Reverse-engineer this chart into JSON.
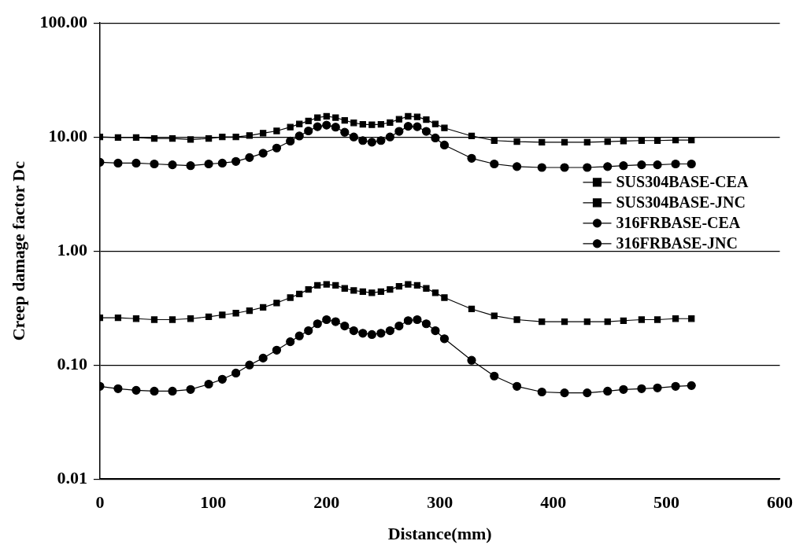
{
  "chart_data": {
    "type": "line",
    "xlabel": "Distance(mm)",
    "ylabel": "Creep damage factor Dc",
    "log": "y",
    "grid": "y",
    "legend": "right",
    "line_style": "solid",
    "x": [
      0,
      16,
      32,
      48,
      64,
      80,
      96,
      108,
      120,
      132,
      144,
      156,
      168,
      176,
      184,
      192,
      200,
      208,
      216,
      224,
      232,
      240,
      248,
      256,
      264,
      272,
      280,
      288,
      296,
      304,
      328,
      348,
      368,
      390,
      410,
      430,
      448,
      462,
      478,
      492,
      508,
      522
    ],
    "xlim": [
      0,
      600
    ],
    "xticks": [
      0,
      100,
      200,
      300,
      400,
      500,
      600
    ],
    "ylim": [
      0.01,
      100
    ],
    "yticks": [
      {
        "value": 0.01,
        "label": "0.01"
      },
      {
        "value": 0.1,
        "label": "0.10"
      },
      {
        "value": 1,
        "label": "1.00"
      },
      {
        "value": 10,
        "label": "10.00"
      },
      {
        "value": 100,
        "label": "100.00"
      }
    ],
    "series": [
      {
        "name": "SUS304BASE-CEA",
        "color": "#000000",
        "marker": "square",
        "values": [
          10,
          9.9,
          9.9,
          9.7,
          9.7,
          9.5,
          9.7,
          10,
          10,
          10.3,
          10.8,
          11.3,
          12.2,
          13,
          13.8,
          14.8,
          15.2,
          14.8,
          14,
          13.3,
          12.9,
          12.8,
          12.9,
          13.4,
          14.3,
          15.2,
          15,
          14.2,
          13,
          12,
          10.2,
          9.3,
          9.1,
          9,
          9,
          9,
          9.1,
          9.2,
          9.3,
          9.3,
          9.4,
          9.4
        ]
      },
      {
        "name": "SUS304BASE-JNC",
        "color": "#000000",
        "marker": "square",
        "values": [
          0.26,
          0.26,
          0.255,
          0.25,
          0.25,
          0.255,
          0.265,
          0.275,
          0.285,
          0.3,
          0.32,
          0.35,
          0.39,
          0.42,
          0.46,
          0.5,
          0.51,
          0.5,
          0.47,
          0.45,
          0.44,
          0.43,
          0.44,
          0.46,
          0.49,
          0.51,
          0.5,
          0.47,
          0.43,
          0.39,
          0.31,
          0.27,
          0.25,
          0.24,
          0.24,
          0.24,
          0.24,
          0.245,
          0.25,
          0.25,
          0.255,
          0.255
        ]
      },
      {
        "name": "316FRBASE-CEA",
        "color": "#000000",
        "marker": "circle",
        "values": [
          6,
          5.9,
          5.9,
          5.8,
          5.7,
          5.6,
          5.8,
          5.9,
          6.1,
          6.6,
          7.2,
          8,
          9.2,
          10.2,
          11.3,
          12.3,
          12.7,
          12.2,
          11,
          10,
          9.3,
          9,
          9.3,
          10,
          11.2,
          12.4,
          12.3,
          11.2,
          9.8,
          8.5,
          6.5,
          5.8,
          5.5,
          5.4,
          5.4,
          5.4,
          5.5,
          5.6,
          5.7,
          5.7,
          5.8,
          5.8
        ]
      },
      {
        "name": "316FRBASE-JNC",
        "color": "#000000",
        "marker": "circle",
        "values": [
          0.065,
          0.062,
          0.06,
          0.059,
          0.059,
          0.061,
          0.068,
          0.075,
          0.085,
          0.1,
          0.115,
          0.135,
          0.16,
          0.18,
          0.2,
          0.23,
          0.25,
          0.24,
          0.22,
          0.2,
          0.19,
          0.185,
          0.19,
          0.2,
          0.22,
          0.245,
          0.25,
          0.23,
          0.2,
          0.17,
          0.11,
          0.08,
          0.065,
          0.058,
          0.057,
          0.057,
          0.059,
          0.061,
          0.062,
          0.063,
          0.065,
          0.066
        ]
      }
    ]
  }
}
